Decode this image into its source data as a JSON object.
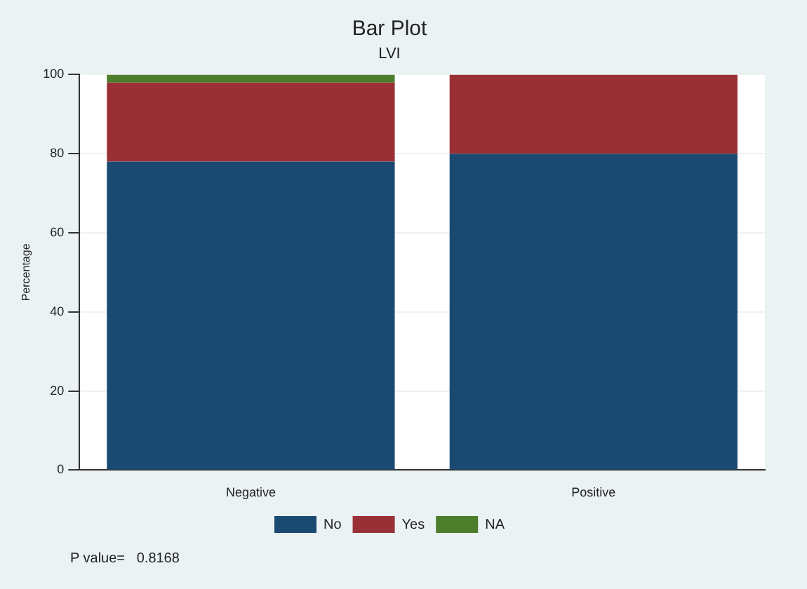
{
  "chart_data": {
    "type": "bar",
    "title": "Bar Plot",
    "subtitle": "LVI",
    "ylabel": "Percentage",
    "categories": [
      "Negative",
      "Positive"
    ],
    "stacked": true,
    "series": [
      {
        "name": "No",
        "color": "#1a4a72",
        "values": [
          78,
          80
        ]
      },
      {
        "name": "Yes",
        "color": "#993036",
        "values": [
          20,
          20
        ]
      },
      {
        "name": "NA",
        "color": "#4b7d2a",
        "values": [
          2,
          0
        ]
      }
    ],
    "ylim": [
      0,
      100
    ],
    "yticks": [
      0,
      20,
      40,
      60,
      80,
      100
    ],
    "grid": "y",
    "legend": "bottom",
    "annotations": [
      "P value=   0.8168"
    ]
  }
}
